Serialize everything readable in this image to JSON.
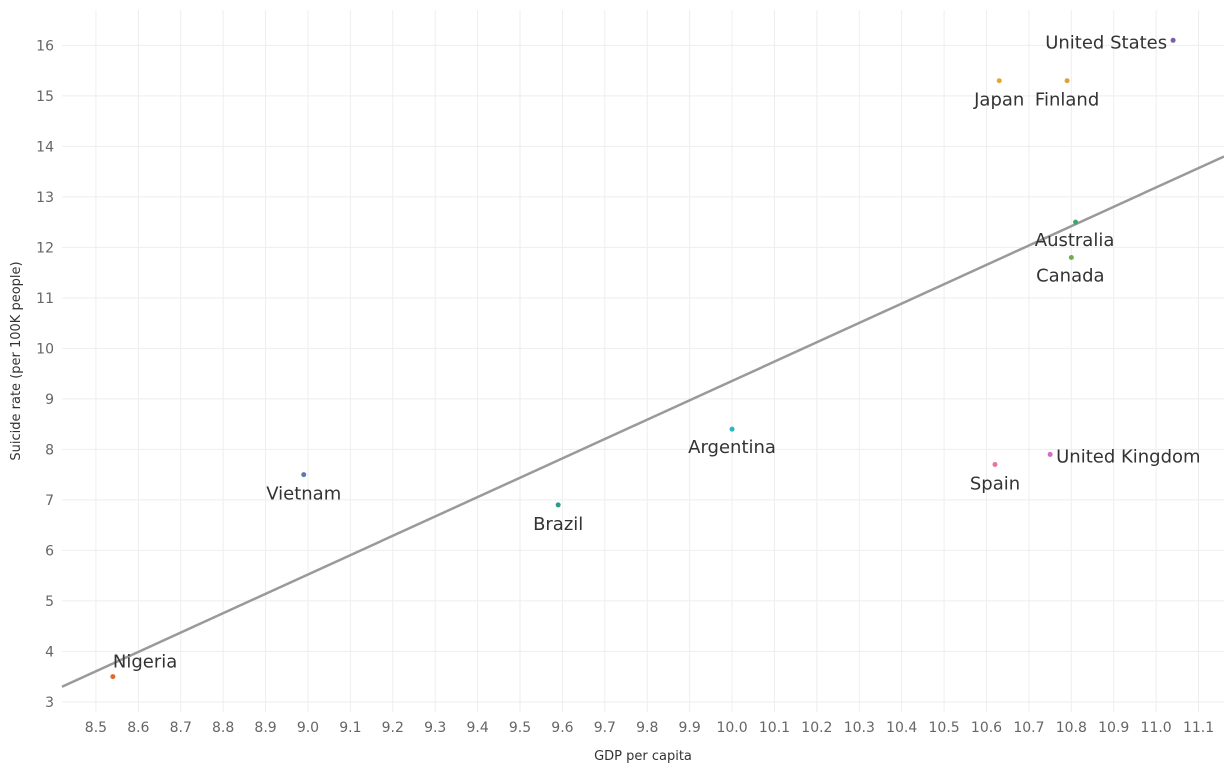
{
  "chart_data": {
    "type": "scatter",
    "xlabel": "GDP per capita",
    "ylabel": "Suicide rate (per 100K people)",
    "xlim": [
      8.42,
      11.16
    ],
    "ylim": [
      2.8,
      16.7
    ],
    "x_ticks": [
      "8.5",
      "8.6",
      "8.7",
      "8.8",
      "8.9",
      "9.0",
      "9.1",
      "9.2",
      "9.3",
      "9.4",
      "9.5",
      "9.6",
      "9.7",
      "9.8",
      "9.9",
      "10.0",
      "10.1",
      "10.2",
      "10.3",
      "10.4",
      "10.5",
      "10.6",
      "10.7",
      "10.8",
      "10.9",
      "11.0",
      "11.1"
    ],
    "y_ticks": [
      "3",
      "4",
      "5",
      "6",
      "7",
      "8",
      "9",
      "10",
      "11",
      "12",
      "13",
      "14",
      "15",
      "16"
    ],
    "grid": true,
    "points": [
      {
        "label": "United States",
        "x": 11.04,
        "y": 16.1,
        "color": "#7b5ea7"
      },
      {
        "label": "Japan",
        "x": 10.63,
        "y": 15.3,
        "color": "#e5a733"
      },
      {
        "label": "Finland",
        "x": 10.79,
        "y": 15.3,
        "color": "#d9a53a"
      },
      {
        "label": "Australia",
        "x": 10.81,
        "y": 12.5,
        "color": "#3aa86b"
      },
      {
        "label": "Canada",
        "x": 10.8,
        "y": 11.8,
        "color": "#6cb04c"
      },
      {
        "label": "Argentina",
        "x": 10.0,
        "y": 8.4,
        "color": "#2bb6c4"
      },
      {
        "label": "United Kingdom",
        "x": 10.75,
        "y": 7.9,
        "color": "#d46cc7"
      },
      {
        "label": "Spain",
        "x": 10.62,
        "y": 7.7,
        "color": "#e8769a"
      },
      {
        "label": "Vietnam",
        "x": 8.99,
        "y": 7.5,
        "color": "#5b7bb0"
      },
      {
        "label": "Brazil",
        "x": 9.59,
        "y": 6.9,
        "color": "#2a9d8f"
      },
      {
        "label": "Nigeria",
        "x": 8.54,
        "y": 3.5,
        "color": "#e06b2a"
      }
    ],
    "trend_line": {
      "x": [
        8.42,
        11.16
      ],
      "y": [
        3.3,
        13.8
      ],
      "color": "#9a9a9a"
    }
  }
}
